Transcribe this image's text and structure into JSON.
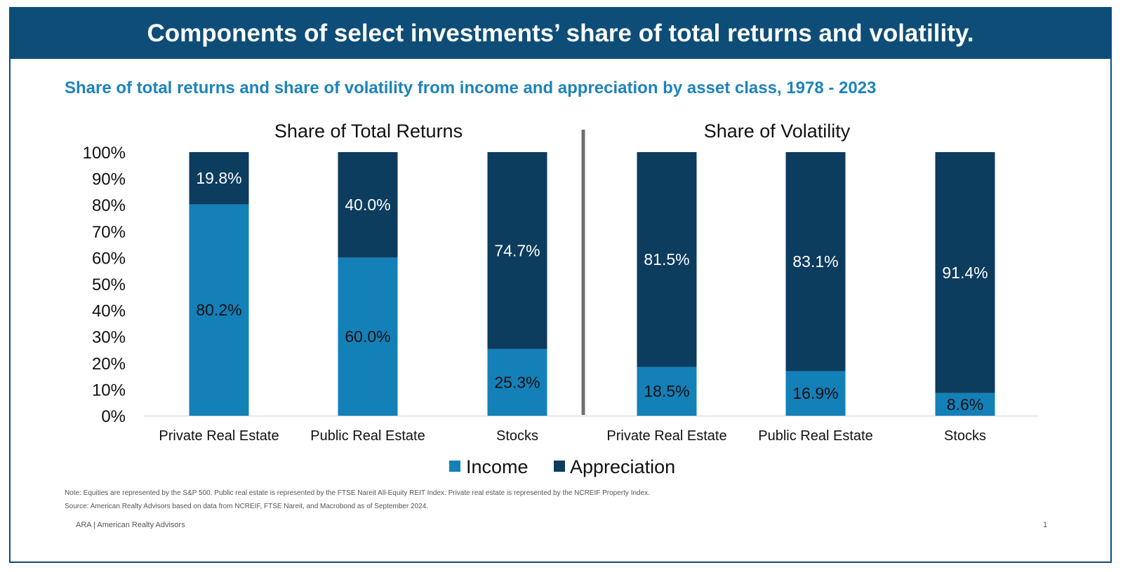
{
  "header": {
    "title": "Components of select investments’ share of total returns and volatility.",
    "subtitle": "Share of total returns and share of volatility from income and appreciation by asset class, 1978 - 2023"
  },
  "chart_data": {
    "type": "bar",
    "stacked": true,
    "y_axis": {
      "ticks": [
        "0%",
        "10%",
        "20%",
        "30%",
        "40%",
        "50%",
        "60%",
        "70%",
        "80%",
        "90%",
        "100%"
      ],
      "ylim": [
        0,
        100
      ]
    },
    "legend": [
      {
        "name": "Income",
        "color": "#1480b8"
      },
      {
        "name": "Appreciation",
        "color": "#0c3c5e"
      }
    ],
    "panels": [
      {
        "title": "Share of Total Returns",
        "categories": [
          "Private Real Estate",
          "Public Real Estate",
          "Stocks"
        ],
        "series": [
          {
            "name": "Income",
            "values": [
              80.2,
              60.0,
              25.3
            ],
            "labels": [
              "80.2%",
              "60.0%",
              "25.3%"
            ]
          },
          {
            "name": "Appreciation",
            "values": [
              19.8,
              40.0,
              74.7
            ],
            "labels": [
              "19.8%",
              "40.0%",
              "74.7%"
            ]
          }
        ]
      },
      {
        "title": "Share of Volatility",
        "categories": [
          "Private Real Estate",
          "Public Real Estate",
          "Stocks"
        ],
        "series": [
          {
            "name": "Income",
            "values": [
              18.5,
              16.9,
              8.6
            ],
            "labels": [
              "18.5%",
              "16.9%",
              "8.6%"
            ]
          },
          {
            "name": "Appreciation",
            "values": [
              81.5,
              83.1,
              91.4
            ],
            "labels": [
              "81.5%",
              "83.1%",
              "91.4%"
            ]
          }
        ]
      }
    ]
  },
  "notes": {
    "note": "Note: Equities are represented by the S&P 500. Public real estate is represented by the FTSE Nareit All-Equity REIT Index. Private real estate is represented by the NCREIF Property Index.",
    "source": "Source: American Realty Advisors based on data from NCREIF, FTSE Nareit, and Macrobond as of September 2024."
  },
  "footer": {
    "company": "ARA | American Realty Advisors",
    "page_number": "1"
  }
}
